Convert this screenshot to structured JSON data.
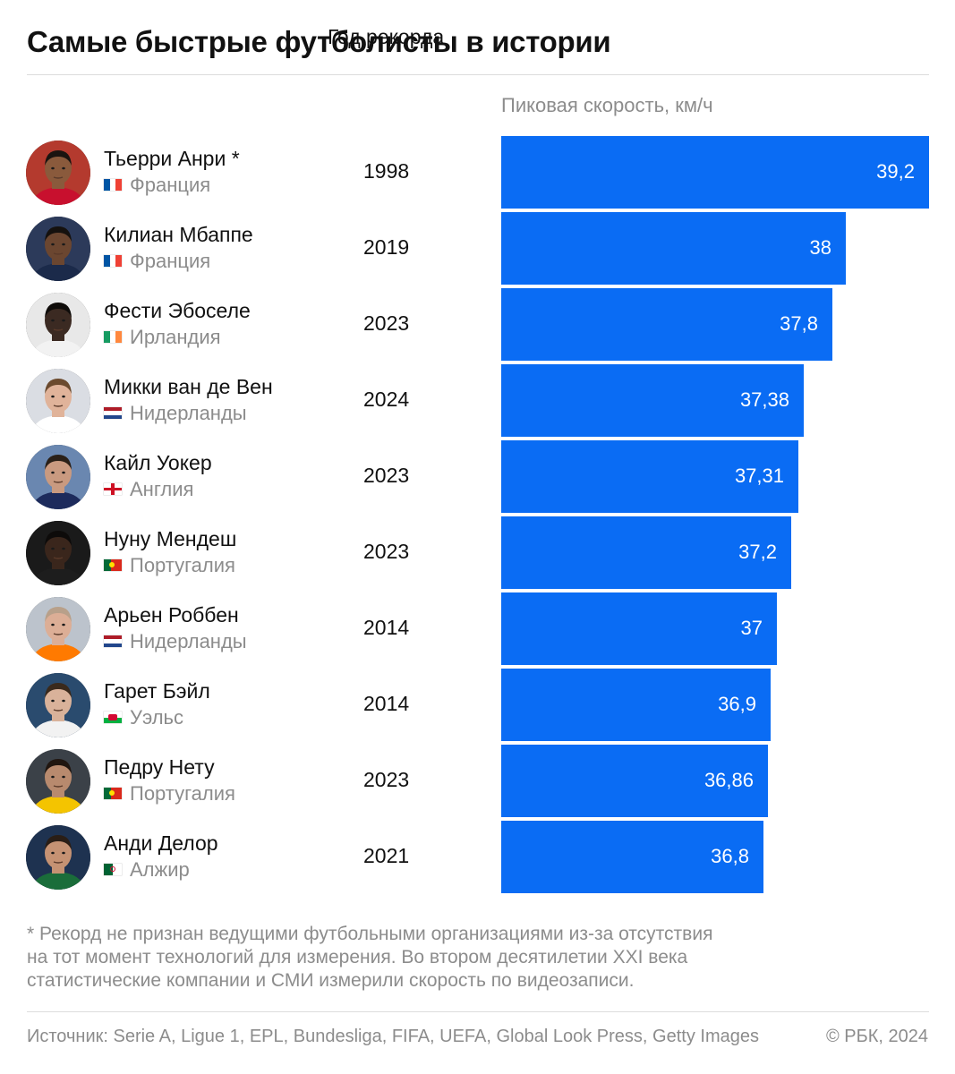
{
  "title": "Самые быстрые футболисты в истории",
  "headers": {
    "year": "Год рекорда",
    "speed": "Пиковая скорость, км/ч"
  },
  "chart_data": {
    "type": "bar",
    "orientation": "horizontal",
    "title": "Самые быстрые футболисты в истории",
    "categories": [
      "Тьерри Анри *",
      "Килиан Мбаппе",
      "Фести Эбоселе",
      "Микки ван де Вен",
      "Кайл Уокер",
      "Нуну Мендеш",
      "Арьен Роббен",
      "Гарет Бэйл",
      "Педру Нету",
      "Анди Делор"
    ],
    "values": [
      39.2,
      38,
      37.8,
      37.38,
      37.31,
      37.2,
      37,
      36.9,
      36.86,
      36.8
    ],
    "value_labels": [
      "39,2",
      "38",
      "37,8",
      "37,38",
      "37,31",
      "37,2",
      "37",
      "36,9",
      "36,86",
      "36,8"
    ],
    "xlabel": "Пиковая скорость, км/ч",
    "ylabel": "",
    "color": "#0a6cf4"
  },
  "players": [
    {
      "name": "Тьерри Анри *",
      "country": "Франция",
      "flag": "france-flag-icon",
      "year": "1998"
    },
    {
      "name": "Килиан Мбаппе",
      "country": "Франция",
      "flag": "france-flag-icon",
      "year": "2019"
    },
    {
      "name": "Фести Эбоселе",
      "country": "Ирландия",
      "flag": "ireland-flag-icon",
      "year": "2023"
    },
    {
      "name": "Микки ван де Вен",
      "country": "Нидерланды",
      "flag": "netherlands-flag-icon",
      "year": "2024"
    },
    {
      "name": "Кайл Уокер",
      "country": "Англия",
      "flag": "england-flag-icon",
      "year": "2023"
    },
    {
      "name": "Нуну Мендеш",
      "country": "Португалия",
      "flag": "portugal-flag-icon",
      "year": "2023"
    },
    {
      "name": "Арьен Роббен",
      "country": "Нидерланды",
      "flag": "netherlands-flag-icon",
      "year": "2014"
    },
    {
      "name": "Гарет Бэйл",
      "country": "Уэльс",
      "flag": "wales-flag-icon",
      "year": "2014"
    },
    {
      "name": "Педру Нету",
      "country": "Португалия",
      "flag": "portugal-flag-icon",
      "year": "2023"
    },
    {
      "name": "Анди Делор",
      "country": "Алжир",
      "flag": "algeria-flag-icon",
      "year": "2021"
    }
  ],
  "note_lines": [
    "* Рекорд не признан ведущими футбольными организациями из-за отсутствия",
    "на тот момент технологий для измерения. Во втором десятилетии XXI века",
    "статистические компании и СМИ измерили скорость по видеозаписи."
  ],
  "source": "Источник: Serie A, Ligue 1, EPL, Bundesliga, FIFA, UEFA, Global Look Press, Getty Images",
  "copyright": "© РБК, 2024"
}
